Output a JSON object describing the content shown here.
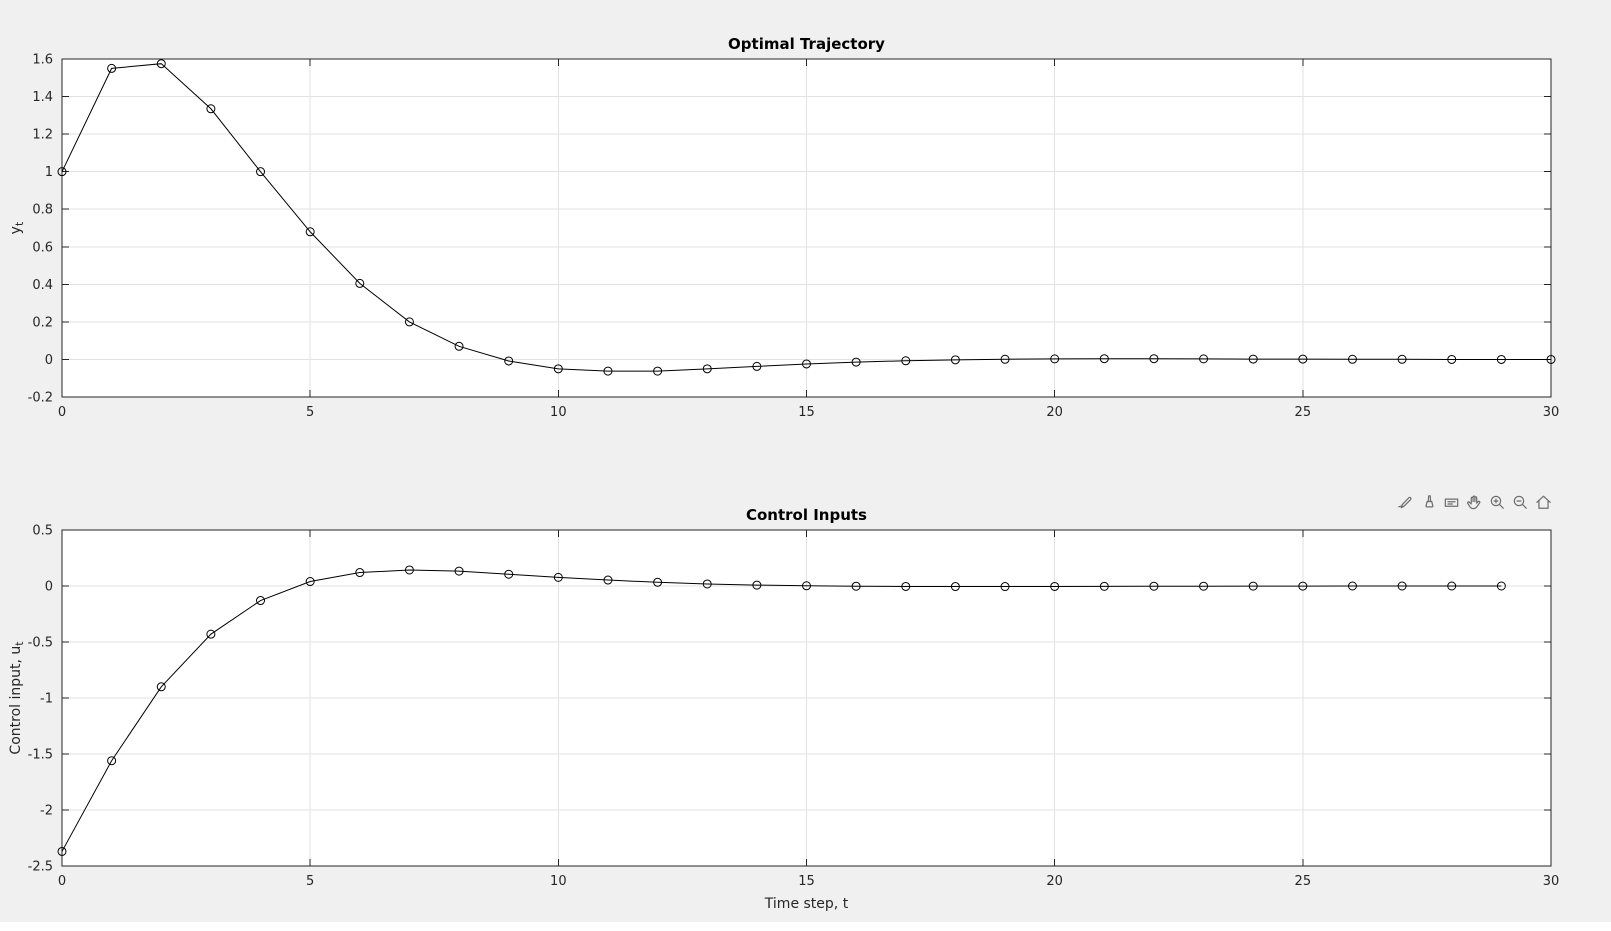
{
  "figure": {
    "background": "#f0f0f0",
    "plot_background": "#ffffff",
    "axis_color": "#262626",
    "grid_color": "#e2e2e2",
    "line_color": "#000000",
    "tick_label_color": "#262626",
    "title_color": "#000000",
    "toolbar": {
      "icon_color": "#6e6e6e",
      "icons": [
        "export",
        "brush",
        "data-tips",
        "pan",
        "zoom-in",
        "zoom-out",
        "restore-view"
      ]
    }
  },
  "chart_data": [
    {
      "type": "line",
      "title": "Optimal Trajectory",
      "series_name": "y_t",
      "xlabel": "",
      "ylabel": {
        "base": "y",
        "sub": "t"
      },
      "x_range": [
        0,
        30
      ],
      "y_range": [
        -0.2,
        1.6
      ],
      "x_ticks": [
        0,
        5,
        10,
        15,
        20,
        25,
        30
      ],
      "x_tick_labels": [
        "0",
        "5",
        "10",
        "15",
        "20",
        "25",
        "30"
      ],
      "y_ticks": [
        -0.2,
        0,
        0.2,
        0.4,
        0.6,
        0.8,
        1,
        1.2,
        1.4,
        1.6
      ],
      "y_tick_labels": [
        "-0.2",
        "0",
        "0.2",
        "0.4",
        "0.6",
        "0.8",
        "1",
        "1.2",
        "1.4",
        "1.6"
      ],
      "grid": true,
      "marker": "o",
      "x": [
        0,
        1,
        2,
        3,
        4,
        5,
        6,
        7,
        8,
        9,
        10,
        11,
        12,
        13,
        14,
        15,
        16,
        17,
        18,
        19,
        20,
        21,
        22,
        23,
        24,
        25,
        26,
        27,
        28,
        29,
        30
      ],
      "y": [
        1.0,
        1.55,
        1.575,
        1.335,
        1.0,
        0.68,
        0.405,
        0.2,
        0.07,
        -0.008,
        -0.05,
        -0.062,
        -0.062,
        -0.05,
        -0.037,
        -0.024,
        -0.014,
        -0.007,
        -0.002,
        0.001,
        0.003,
        0.004,
        0.004,
        0.003,
        0.002,
        0.002,
        0.001,
        0.001,
        0.0,
        0.0,
        0.0
      ]
    },
    {
      "type": "line",
      "title": "Control Inputs",
      "series_name": "u_t",
      "xlabel": "Time step, t",
      "ylabel": {
        "base": "Control input, u",
        "sub": "t"
      },
      "x_range": [
        0,
        30
      ],
      "y_range": [
        -2.5,
        0.5
      ],
      "x_ticks": [
        0,
        5,
        10,
        15,
        20,
        25,
        30
      ],
      "x_tick_labels": [
        "0",
        "5",
        "10",
        "15",
        "20",
        "25",
        "30"
      ],
      "y_ticks": [
        -2.5,
        -2,
        -1.5,
        -1,
        -0.5,
        0,
        0.5
      ],
      "y_tick_labels": [
        "-2.5",
        "-2",
        "-1.5",
        "-1",
        "-0.5",
        "0",
        "0.5"
      ],
      "grid": true,
      "marker": "o",
      "x": [
        0,
        1,
        2,
        3,
        4,
        5,
        6,
        7,
        8,
        9,
        10,
        11,
        12,
        13,
        14,
        15,
        16,
        17,
        18,
        19,
        20,
        21,
        22,
        23,
        24,
        25,
        26,
        27,
        28,
        29
      ],
      "y": [
        -2.37,
        -1.56,
        -0.9,
        -0.43,
        -0.13,
        0.04,
        0.12,
        0.143,
        0.133,
        0.105,
        0.077,
        0.053,
        0.033,
        0.018,
        0.008,
        0.002,
        -0.002,
        -0.004,
        -0.005,
        -0.005,
        -0.004,
        -0.003,
        -0.002,
        -0.002,
        -0.001,
        -0.001,
        0.0,
        0.0,
        0.0,
        0.0
      ]
    }
  ]
}
